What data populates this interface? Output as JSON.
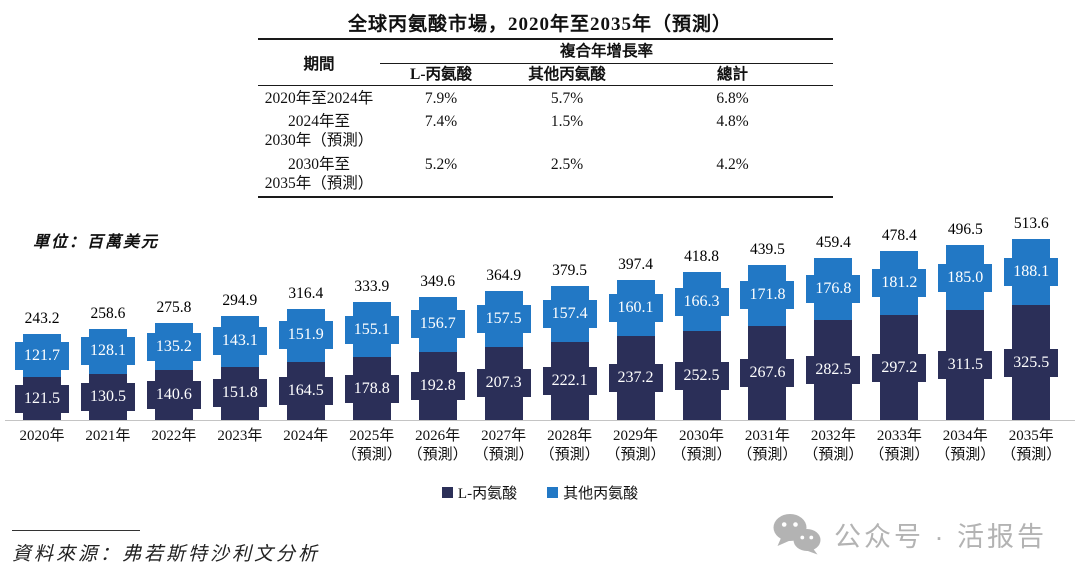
{
  "title": "全球丙氨酸市場，2020年至2035年（預測）",
  "table": {
    "period_header": "期間",
    "cagr_header": "複合年增長率",
    "sub_headers": [
      "L-丙氨酸",
      "其他丙氨酸",
      "總計"
    ],
    "rows": [
      {
        "period_lines": [
          "2020年至2024年"
        ],
        "l": "7.9%",
        "other": "5.7%",
        "total": "6.8%"
      },
      {
        "period_lines": [
          "2024年至",
          "2030年（預測）"
        ],
        "l": "7.4%",
        "other": "1.5%",
        "total": "4.8%"
      },
      {
        "period_lines": [
          "2030年至",
          "2035年（預測）"
        ],
        "l": "5.2%",
        "other": "2.5%",
        "total": "4.2%"
      }
    ]
  },
  "unit_label": "單位：百萬美元",
  "chart_data": {
    "type": "bar",
    "stacked": true,
    "unit": "百萬美元",
    "categories": [
      [
        "2020年"
      ],
      [
        "2021年"
      ],
      [
        "2022年"
      ],
      [
        "2023年"
      ],
      [
        "2024年"
      ],
      [
        "2025年",
        "（預測）"
      ],
      [
        "2026年",
        "（預測）"
      ],
      [
        "2027年",
        "（預測）"
      ],
      [
        "2028年",
        "（預測）"
      ],
      [
        "2029年",
        "（預測）"
      ],
      [
        "2030年",
        "（預測）"
      ],
      [
        "2031年",
        "（預測）"
      ],
      [
        "2032年",
        "（預測）"
      ],
      [
        "2033年",
        "（預測）"
      ],
      [
        "2034年",
        "（預測）"
      ],
      [
        "2035年",
        "（預測）"
      ]
    ],
    "series": [
      {
        "name": "L-丙氨酸",
        "color": "#2b2f58",
        "values": [
          121.5,
          130.5,
          140.6,
          151.8,
          164.5,
          178.8,
          192.8,
          207.3,
          222.1,
          237.2,
          252.5,
          267.6,
          282.5,
          297.2,
          311.5,
          325.5
        ]
      },
      {
        "name": "其他丙氨酸",
        "color": "#2278c5",
        "values": [
          121.7,
          128.1,
          135.2,
          143.1,
          151.9,
          155.1,
          156.7,
          157.5,
          157.4,
          160.1,
          166.3,
          171.8,
          176.8,
          181.2,
          185.0,
          188.1
        ]
      }
    ],
    "totals": [
      243.2,
      258.6,
      275.8,
      294.9,
      316.4,
      333.9,
      349.6,
      364.9,
      379.5,
      397.4,
      418.8,
      439.5,
      459.4,
      478.4,
      496.5,
      513.6
    ],
    "ylim": [
      0,
      560
    ],
    "grid": false,
    "legend_position": "bottom"
  },
  "legend": [
    {
      "label": "L-丙氨酸",
      "color": "#2b2f58"
    },
    {
      "label": "其他丙氨酸",
      "color": "#2278c5"
    }
  ],
  "source": "資料來源：弗若斯特沙利文分析",
  "watermark": {
    "text": "公众号 · 活报告",
    "color": "#b3b3b3"
  }
}
